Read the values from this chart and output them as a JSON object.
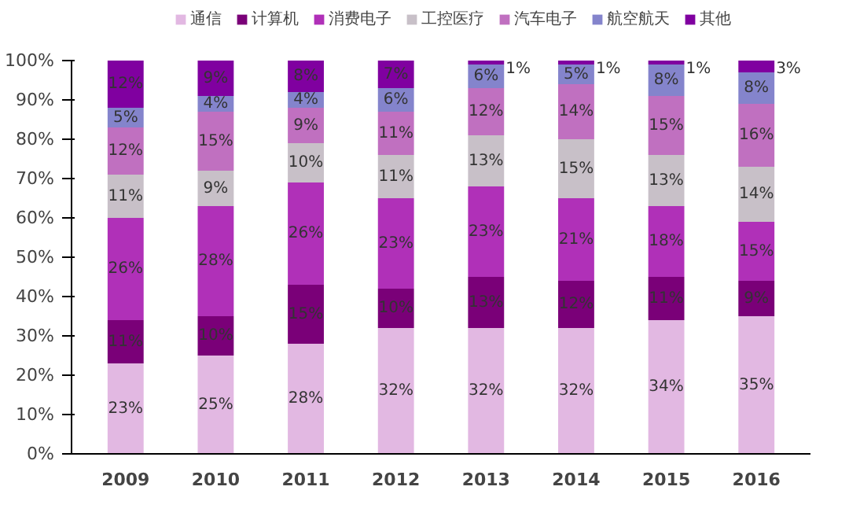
{
  "chart_data": {
    "type": "bar",
    "stacked": true,
    "legend": "top",
    "categories": [
      "2009",
      "2010",
      "2011",
      "2012",
      "2013",
      "2014",
      "2015",
      "2016"
    ],
    "ylim": [
      0,
      100
    ],
    "yticks": [
      {
        "value": 0,
        "label": "0%"
      },
      {
        "value": 10,
        "label": "10%"
      },
      {
        "value": 20,
        "label": "20%"
      },
      {
        "value": 30,
        "label": "30%"
      },
      {
        "value": 40,
        "label": "40%"
      },
      {
        "value": 50,
        "label": "50%"
      },
      {
        "value": 60,
        "label": "60%"
      },
      {
        "value": 70,
        "label": "70%"
      },
      {
        "value": 80,
        "label": "80%"
      },
      {
        "value": 90,
        "label": "90%"
      },
      {
        "value": 100,
        "label": "100%"
      }
    ],
    "series": [
      {
        "name": "通信",
        "color": "#e2b8e2",
        "values": [
          23,
          25,
          28,
          32,
          32,
          32,
          34,
          35
        ],
        "value_labels": [
          "23%",
          "25%",
          "28%",
          "32%",
          "32%",
          "32%",
          "34%",
          "35%"
        ]
      },
      {
        "name": "计算机",
        "color": "#7a0078",
        "values": [
          11,
          10,
          15,
          10,
          13,
          12,
          11,
          9
        ],
        "value_labels": [
          "11%",
          "10%",
          "15%",
          "10%",
          "13%",
          "12%",
          "11%",
          "9%"
        ]
      },
      {
        "name": "消费电子",
        "color": "#b030b8",
        "values": [
          26,
          28,
          26,
          23,
          23,
          21,
          18,
          15
        ],
        "value_labels": [
          "26%",
          "28%",
          "26%",
          "23%",
          "23%",
          "21%",
          "18%",
          "15%"
        ]
      },
      {
        "name": "工控医疗",
        "color": "#c8c0c8",
        "values": [
          11,
          9,
          10,
          11,
          13,
          15,
          13,
          14
        ],
        "value_labels": [
          "11%",
          "9%",
          "10%",
          "11%",
          "13%",
          "15%",
          "13%",
          "14%"
        ]
      },
      {
        "name": "汽车电子",
        "color": "#c070c0",
        "values": [
          12,
          15,
          9,
          11,
          12,
          14,
          15,
          16
        ],
        "value_labels": [
          "12%",
          "15%",
          "9%",
          "11%",
          "12%",
          "14%",
          "15%",
          "16%"
        ]
      },
      {
        "name": "航空航天",
        "color": "#8484cc",
        "values": [
          5,
          4,
          4,
          6,
          6,
          5,
          8,
          8
        ],
        "value_labels": [
          "5%",
          "4%",
          "4%",
          "6%",
          "6%",
          "5%",
          "8%",
          "8%"
        ]
      },
      {
        "name": "其他",
        "color": "#8000a0",
        "values": [
          12,
          9,
          8,
          7,
          1,
          1,
          1,
          3
        ],
        "value_labels": [
          "12%",
          "9%",
          "8%",
          "7%",
          "1%",
          "1%",
          "1%",
          "3%"
        ]
      }
    ]
  }
}
